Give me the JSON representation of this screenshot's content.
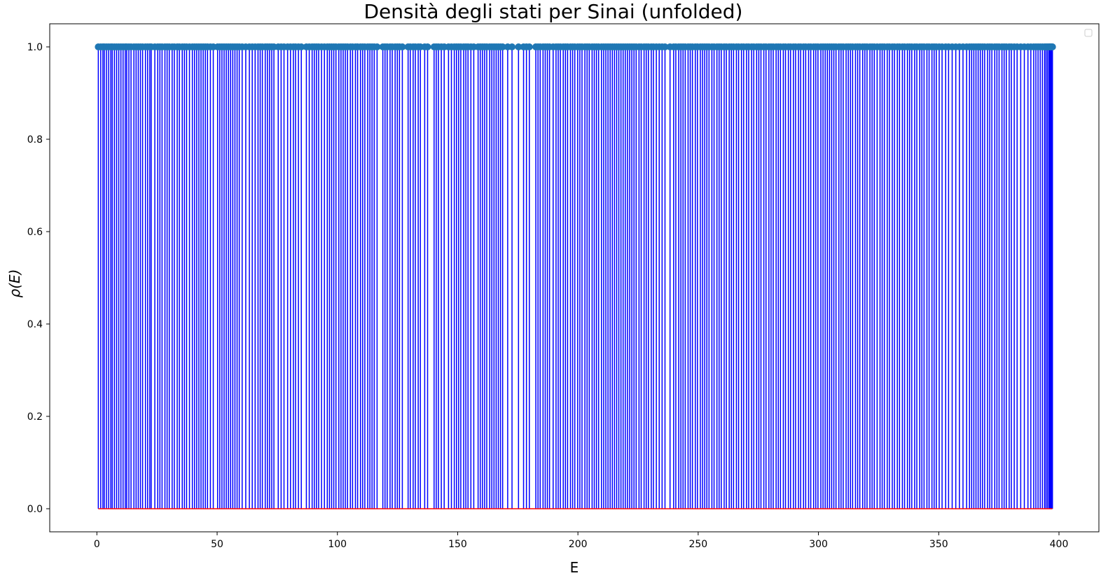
{
  "chart_data": {
    "type": "stem",
    "title": "Densità degli stati per Sinai (unfolded)",
    "xlabel": "E",
    "ylabel": "ρ(E)",
    "xlim": [
      -19.6,
      416.6
    ],
    "ylim": [
      -0.05,
      1.05
    ],
    "xticks": [
      "0",
      "50",
      "100",
      "150",
      "200",
      "250",
      "300",
      "350",
      "400"
    ],
    "xtick_values": [
      0,
      50,
      100,
      150,
      200,
      250,
      300,
      350,
      400
    ],
    "yticks": [
      "0.0",
      "0.2",
      "0.4",
      "0.6",
      "0.8",
      "1.0"
    ],
    "ytick_values": [
      0,
      0.2,
      0.4,
      0.6,
      0.8,
      1.0
    ],
    "stem_value": 1.0,
    "baseline_value": 0.0,
    "stem_x": [
      0.6,
      1.6,
      2.5,
      3.1,
      4.0,
      4.9,
      5.8,
      6.4,
      7.3,
      8.2,
      9.1,
      10.0,
      10.9,
      11.8,
      12.4,
      13.3,
      14.2,
      15.4,
      16.3,
      17.2,
      18.1,
      19.0,
      20.2,
      21.1,
      22.0,
      22.6,
      24.1,
      25.3,
      26.2,
      27.1,
      28.3,
      29.2,
      30.1,
      31.3,
      32.2,
      33.4,
      34.3,
      35.5,
      36.4,
      37.3,
      38.5,
      39.7,
      40.6,
      41.5,
      42.4,
      43.3,
      44.2,
      45.1,
      46.0,
      47.2,
      48.4,
      50.2,
      51.1,
      52.0,
      52.9,
      53.8,
      54.7,
      55.6,
      56.5,
      57.4,
      58.3,
      59.2,
      60.4,
      61.9,
      63.4,
      64.6,
      65.8,
      67.0,
      67.9,
      68.8,
      70.0,
      70.9,
      71.8,
      72.7,
      73.6,
      75.4,
      76.6,
      77.8,
      79.3,
      80.5,
      81.7,
      82.6,
      83.8,
      85.0,
      87.1,
      88.3,
      89.5,
      90.4,
      91.3,
      92.2,
      93.4,
      94.6,
      95.8,
      96.7,
      97.6,
      98.5,
      99.4,
      100.6,
      101.5,
      102.4,
      103.3,
      104.2,
      105.4,
      106.3,
      107.5,
      108.4,
      109.6,
      110.5,
      111.4,
      112.6,
      113.5,
      114.4,
      115.3,
      116.5,
      118.9,
      119.8,
      120.7,
      121.9,
      122.8,
      124.0,
      124.9,
      125.8,
      127.0,
      129.4,
      130.3,
      131.5,
      132.4,
      133.6,
      134.5,
      136.3,
      137.5,
      140.2,
      141.1,
      142.0,
      143.2,
      144.4,
      146.2,
      147.4,
      148.6,
      149.5,
      150.4,
      151.3,
      152.5,
      153.4,
      154.3,
      155.5,
      156.7,
      158.5,
      159.4,
      160.3,
      161.2,
      162.1,
      163.3,
      164.2,
      165.1,
      166.0,
      166.9,
      167.8,
      168.7,
      170.8,
      172.6,
      175.3,
      177.4,
      178.6,
      179.8,
      182.5,
      183.4,
      184.3,
      185.5,
      186.4,
      187.3,
      188.2,
      189.7,
      190.9,
      191.8,
      192.7,
      193.9,
      194.8,
      195.7,
      196.9,
      197.8,
      198.7,
      199.9,
      200.8,
      201.7,
      202.9,
      203.8,
      204.7,
      205.9,
      206.8,
      207.7,
      208.6,
      209.8,
      210.7,
      211.6,
      212.5,
      213.4,
      214.3,
      215.2,
      216.1,
      217.0,
      217.9,
      218.8,
      219.7,
      220.6,
      221.5,
      222.4,
      223.3,
      224.2,
      225.4,
      226.3,
      227.5,
      228.4,
      229.3,
      230.5,
      231.4,
      232.6,
      233.8,
      235.0,
      236.2,
      238.3,
      239.8,
      240.7,
      241.9,
      242.8,
      243.7,
      244.6,
      245.8,
      246.7,
      247.6,
      248.8,
      249.7,
      250.9,
      251.8,
      252.7,
      253.6,
      254.5,
      255.7,
      256.6,
      257.8,
      258.7,
      259.6,
      260.8,
      261.7,
      262.9,
      263.8,
      264.7,
      265.9,
      266.8,
      268.0,
      268.9,
      270.1,
      271.0,
      272.2,
      273.1,
      274.3,
      275.2,
      276.1,
      277.3,
      278.2,
      279.4,
      280.3,
      281.2,
      282.4,
      283.3,
      284.2,
      285.4,
      286.3,
      287.5,
      288.4,
      289.6,
      290.5,
      291.7,
      292.6,
      293.8,
      294.7,
      295.9,
      296.8,
      298.0,
      298.9,
      299.8,
      301.0,
      301.9,
      302.8,
      303.7,
      304.6,
      305.5,
      306.4,
      307.3,
      308.5,
      309.4,
      310.3,
      311.5,
      312.4,
      313.3,
      314.2,
      315.4,
      316.3,
      317.2,
      318.4,
      319.3,
      320.2,
      321.4,
      322.3,
      323.2,
      324.4,
      325.6,
      326.5,
      327.4,
      328.6,
      329.5,
      330.7,
      331.6,
      332.8,
      333.7,
      334.9,
      335.8,
      337.0,
      337.9,
      338.8,
      340.0,
      340.9,
      342.1,
      343.0,
      343.9,
      345.1,
      346.0,
      347.2,
      348.1,
      349.0,
      350.2,
      351.4,
      352.9,
      354.1,
      355.6,
      357.1,
      358.6,
      360.1,
      361.6,
      362.8,
      363.7,
      364.6,
      365.5,
      366.4,
      367.3,
      368.2,
      369.1,
      370.3,
      371.2,
      372.1,
      373.3,
      374.2,
      375.1,
      376.3,
      377.2,
      378.1,
      379.3,
      380.2,
      381.4,
      382.6,
      384.1,
      385.6,
      387.1,
      388.3,
      389.5,
      390.4,
      391.3,
      392.2,
      393.1,
      394.0,
      394.6,
      395.2,
      395.8,
      396.1,
      396.4,
      396.7,
      397.0,
      397.3
    ]
  },
  "colors": {
    "stem": "#0000ff",
    "marker": "#1f77b4",
    "baseline": "#ff0000",
    "axes": "#000000",
    "background": "#ffffff"
  }
}
